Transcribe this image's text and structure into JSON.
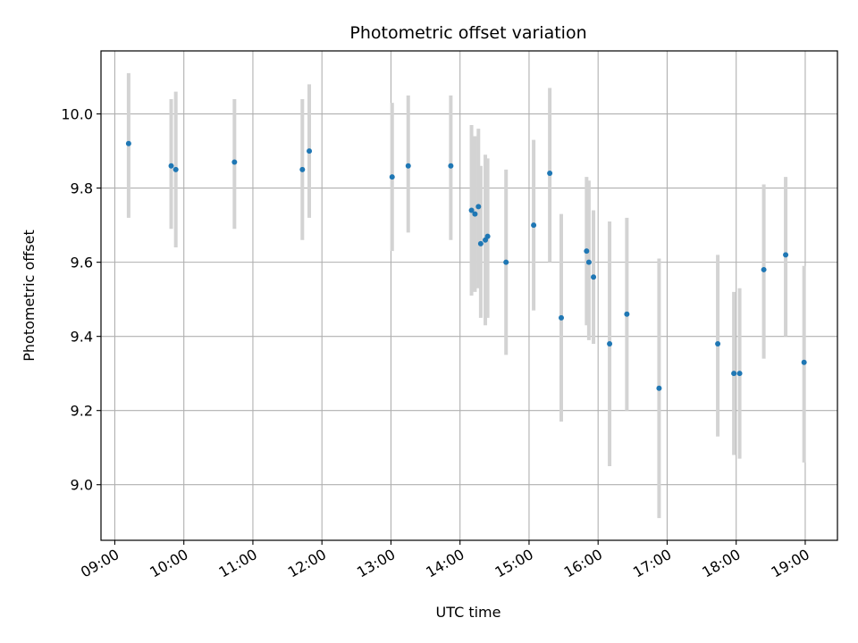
{
  "chart_data": {
    "type": "scatter",
    "title": "Photometric offset variation",
    "xlabel": "UTC time",
    "ylabel": "Photometric offset",
    "x_tick_labels": [
      "09:00",
      "10:00",
      "11:00",
      "12:00",
      "13:00",
      "14:00",
      "15:00",
      "16:00",
      "17:00",
      "18:00",
      "19:00"
    ],
    "y_tick_labels": [
      "9.0",
      "9.2",
      "9.4",
      "9.6",
      "9.8",
      "10.0"
    ],
    "xlim": [
      "08:48",
      "19:28"
    ],
    "ylim": [
      8.85,
      10.17
    ],
    "grid": true,
    "colors": {
      "points": "#1f77b4",
      "error_bars": "#d3d3d3",
      "grid": "#b0b0b0"
    },
    "series": [
      {
        "points": [
          {
            "t": "09:12",
            "y": 9.92,
            "lo": 9.72,
            "hi": 10.11
          },
          {
            "t": "09:49",
            "y": 9.86,
            "lo": 9.69,
            "hi": 10.04
          },
          {
            "t": "09:53",
            "y": 9.85,
            "lo": 9.64,
            "hi": 10.06
          },
          {
            "t": "10:44",
            "y": 9.87,
            "lo": 9.69,
            "hi": 10.04
          },
          {
            "t": "11:43",
            "y": 9.85,
            "lo": 9.66,
            "hi": 10.04
          },
          {
            "t": "11:49",
            "y": 9.9,
            "lo": 9.72,
            "hi": 10.08
          },
          {
            "t": "13:01",
            "y": 9.83,
            "lo": 9.63,
            "hi": 10.03
          },
          {
            "t": "13:15",
            "y": 9.86,
            "lo": 9.68,
            "hi": 10.05
          },
          {
            "t": "13:52",
            "y": 9.86,
            "lo": 9.66,
            "hi": 10.05
          },
          {
            "t": "14:10",
            "y": 9.74,
            "lo": 9.51,
            "hi": 9.97
          },
          {
            "t": "14:13",
            "y": 9.73,
            "lo": 9.52,
            "hi": 9.94
          },
          {
            "t": "14:16",
            "y": 9.75,
            "lo": 9.53,
            "hi": 9.96
          },
          {
            "t": "14:18",
            "y": 9.65,
            "lo": 9.45,
            "hi": 9.86
          },
          {
            "t": "14:22",
            "y": 9.66,
            "lo": 9.43,
            "hi": 9.89
          },
          {
            "t": "14:24",
            "y": 9.67,
            "lo": 9.45,
            "hi": 9.88
          },
          {
            "t": "14:40",
            "y": 9.6,
            "lo": 9.35,
            "hi": 9.85
          },
          {
            "t": "15:04",
            "y": 9.7,
            "lo": 9.47,
            "hi": 9.93
          },
          {
            "t": "15:18",
            "y": 9.84,
            "lo": 9.6,
            "hi": 10.07
          },
          {
            "t": "15:28",
            "y": 9.45,
            "lo": 9.17,
            "hi": 9.73
          },
          {
            "t": "15:50",
            "y": 9.63,
            "lo": 9.43,
            "hi": 9.83
          },
          {
            "t": "15:52",
            "y": 9.6,
            "lo": 9.39,
            "hi": 9.82
          },
          {
            "t": "15:56",
            "y": 9.56,
            "lo": 9.38,
            "hi": 9.74
          },
          {
            "t": "16:10",
            "y": 9.38,
            "lo": 9.05,
            "hi": 9.71
          },
          {
            "t": "16:25",
            "y": 9.46,
            "lo": 9.2,
            "hi": 9.72
          },
          {
            "t": "16:53",
            "y": 9.26,
            "lo": 8.91,
            "hi": 9.61
          },
          {
            "t": "17:44",
            "y": 9.38,
            "lo": 9.13,
            "hi": 9.62
          },
          {
            "t": "17:58",
            "y": 9.3,
            "lo": 9.08,
            "hi": 9.52
          },
          {
            "t": "18:03",
            "y": 9.3,
            "lo": 9.07,
            "hi": 9.53
          },
          {
            "t": "18:24",
            "y": 9.58,
            "lo": 9.34,
            "hi": 9.81
          },
          {
            "t": "18:43",
            "y": 9.62,
            "lo": 9.4,
            "hi": 9.83
          },
          {
            "t": "18:59",
            "y": 9.33,
            "lo": 9.06,
            "hi": 9.59
          }
        ]
      }
    ]
  }
}
